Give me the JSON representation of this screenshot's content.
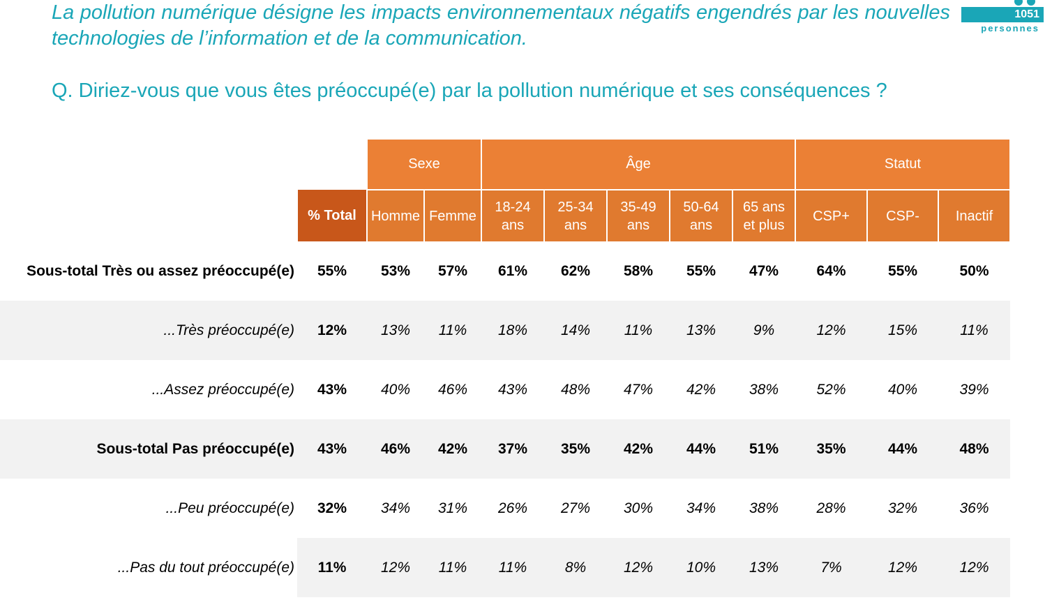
{
  "intro": "La pollution numérique désigne les impacts environnementaux négatifs engendrés par les nouvelles technologies de l’information et de la communication.",
  "question": "Q. Diriez-vous que vous êtes préoccupé(e) par la pollution numérique et ses conséquences ?",
  "sample": {
    "count": "1051",
    "label": "personnes"
  },
  "colors": {
    "teal": "#1aa6b7",
    "orange": "#eb8035",
    "dark_orange": "#c8571a",
    "row_shade": "#f2f2f2"
  },
  "table": {
    "groups": [
      "Sexe",
      "Âge",
      "Statut"
    ],
    "columns": {
      "total": "% Total",
      "homme": "Homme",
      "femme": "Femme",
      "a18_24": {
        "line1": "18-24",
        "line2": "ans"
      },
      "a25_34": {
        "line1": "25-34",
        "line2": "ans"
      },
      "a35_49": {
        "line1": "35-49",
        "line2": "ans"
      },
      "a50_64": {
        "line1": "50-64",
        "line2": "ans"
      },
      "a65": {
        "line1": "65 ans",
        "line2": "et plus"
      },
      "csp_plus": "CSP+",
      "csp_minus": "CSP-",
      "inactif": "Inactif"
    },
    "rows": [
      {
        "label": "Sous-total Très ou assez préoccupé(e)",
        "values": [
          "55%",
          "53%",
          "57%",
          "61%",
          "62%",
          "58%",
          "55%",
          "47%",
          "64%",
          "55%",
          "50%"
        ]
      },
      {
        "label": "...Très préoccupé(e)",
        "values": [
          "12%",
          "13%",
          "11%",
          "18%",
          "14%",
          "11%",
          "13%",
          "9%",
          "12%",
          "15%",
          "11%"
        ]
      },
      {
        "label": "...Assez préoccupé(e)",
        "values": [
          "43%",
          "40%",
          "46%",
          "43%",
          "48%",
          "47%",
          "42%",
          "38%",
          "52%",
          "40%",
          "39%"
        ]
      },
      {
        "label": "Sous-total Pas préoccupé(e)",
        "values": [
          "43%",
          "46%",
          "42%",
          "37%",
          "35%",
          "42%",
          "44%",
          "51%",
          "35%",
          "44%",
          "48%"
        ]
      },
      {
        "label": "...Peu préoccupé(e)",
        "values": [
          "32%",
          "34%",
          "31%",
          "26%",
          "27%",
          "30%",
          "34%",
          "38%",
          "28%",
          "32%",
          "36%"
        ]
      },
      {
        "label": "...Pas du tout préoccupé(e)",
        "values": [
          "11%",
          "12%",
          "11%",
          "11%",
          "8%",
          "12%",
          "10%",
          "13%",
          "7%",
          "12%",
          "12%"
        ]
      }
    ]
  }
}
